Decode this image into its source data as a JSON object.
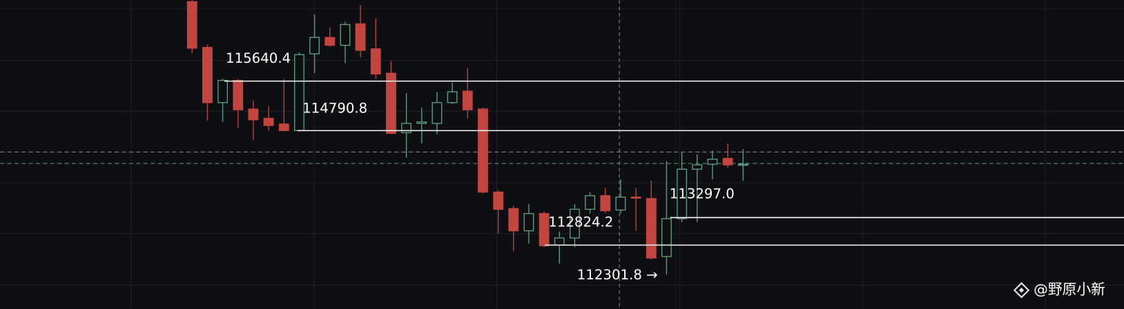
{
  "chart_data": {
    "type": "candlestick",
    "ylim": [
      111730,
      117031
    ],
    "up_color": "#5f9e80",
    "down_color": "#c2453f",
    "candles": [
      {
        "open": 117006,
        "high": 117031,
        "low": 116121,
        "close": 116207
      },
      {
        "open": 116219,
        "high": 116268,
        "low": 114965,
        "close": 115272
      },
      {
        "open": 115272,
        "high": 115678,
        "low": 114940,
        "close": 115653
      },
      {
        "open": 115653,
        "high": 115678,
        "low": 114843,
        "close": 115149
      },
      {
        "open": 115161,
        "high": 115309,
        "low": 114633,
        "close": 114977
      },
      {
        "open": 115002,
        "high": 115211,
        "low": 114792,
        "close": 114879
      },
      {
        "open": 114903,
        "high": 115678,
        "low": 114780,
        "close": 114792
      },
      {
        "open": 114792,
        "high": 116133,
        "low": 114780,
        "close": 116096
      },
      {
        "open": 116109,
        "high": 116785,
        "low": 115776,
        "close": 116391
      },
      {
        "open": 116391,
        "high": 116564,
        "low": 116232,
        "close": 116256
      },
      {
        "open": 116256,
        "high": 116662,
        "low": 115949,
        "close": 116613
      },
      {
        "open": 116625,
        "high": 116945,
        "low": 116047,
        "close": 116170
      },
      {
        "open": 116195,
        "high": 116724,
        "low": 115678,
        "close": 115764
      },
      {
        "open": 115776,
        "high": 115986,
        "low": 114731,
        "close": 114743
      },
      {
        "open": 114756,
        "high": 115432,
        "low": 114325,
        "close": 114915
      },
      {
        "open": 114915,
        "high": 115186,
        "low": 114571,
        "close": 114940
      },
      {
        "open": 114915,
        "high": 115457,
        "low": 114731,
        "close": 115272
      },
      {
        "open": 115272,
        "high": 115617,
        "low": 115248,
        "close": 115457
      },
      {
        "open": 115469,
        "high": 115863,
        "low": 115002,
        "close": 115149
      },
      {
        "open": 115161,
        "high": 115186,
        "low": 113710,
        "close": 113735
      },
      {
        "open": 113735,
        "high": 113772,
        "low": 113021,
        "close": 113439
      },
      {
        "open": 113452,
        "high": 113501,
        "low": 112726,
        "close": 113070
      },
      {
        "open": 113070,
        "high": 113526,
        "low": 112849,
        "close": 113366
      },
      {
        "open": 113366,
        "high": 113403,
        "low": 112788,
        "close": 112812
      },
      {
        "open": 112824,
        "high": 113058,
        "low": 112505,
        "close": 112947
      },
      {
        "open": 112947,
        "high": 113526,
        "low": 112788,
        "close": 113439
      },
      {
        "open": 113439,
        "high": 113735,
        "low": 113366,
        "close": 113673
      },
      {
        "open": 113673,
        "high": 113808,
        "low": 113378,
        "close": 113415
      },
      {
        "open": 113427,
        "high": 113956,
        "low": 113366,
        "close": 113649
      },
      {
        "open": 113649,
        "high": 113808,
        "low": 113070,
        "close": 113636
      },
      {
        "open": 113624,
        "high": 113931,
        "low": 112578,
        "close": 112603
      },
      {
        "open": 112628,
        "high": 114264,
        "low": 112320,
        "close": 113279
      },
      {
        "open": 113279,
        "high": 114423,
        "low": 113218,
        "close": 114128
      },
      {
        "open": 114128,
        "high": 114386,
        "low": 113218,
        "close": 114202
      },
      {
        "open": 114214,
        "high": 114448,
        "low": 113956,
        "close": 114300
      },
      {
        "open": 114313,
        "high": 114571,
        "low": 114153,
        "close": 114202
      },
      {
        "open": 114202,
        "high": 114473,
        "low": 113931,
        "close": 114214
      }
    ],
    "levels": [
      {
        "value": 115640.4,
        "label": "115640.4"
      },
      {
        "value": 114790.8,
        "label": "114790.8"
      },
      {
        "value": 113297.0,
        "label": "113297.0"
      },
      {
        "value": 112824.2,
        "label": "112824.2"
      },
      {
        "value": 112301.8,
        "label": "112301.8 →"
      }
    ],
    "watermark": "@野原小新"
  }
}
